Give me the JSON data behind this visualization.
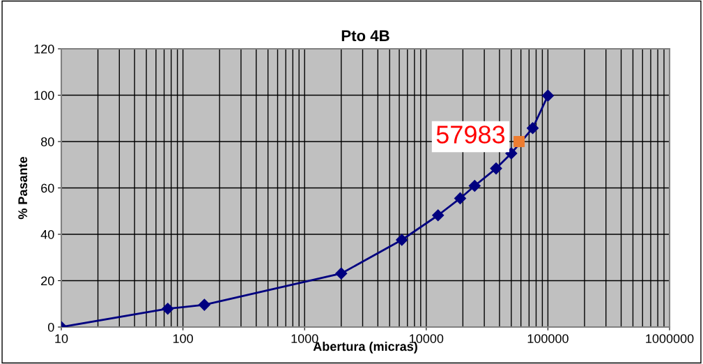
{
  "chart_data": {
    "type": "line",
    "title": "Pto 4B",
    "xlabel": "Abertura (micras)",
    "ylabel": "% Pasante",
    "log": "x",
    "grid": true,
    "xlim": [
      10,
      1000000
    ],
    "xticks": [
      10,
      100,
      1000,
      10000,
      100000,
      1000000
    ],
    "ylim": [
      0,
      120
    ],
    "yticks": [
      0,
      20,
      40,
      60,
      80,
      100,
      120
    ],
    "series": [
      {
        "marker": "diamond",
        "color": "#000080",
        "x": [
          10,
          75,
          150,
          2000,
          6300,
          12500,
          19000,
          25000,
          37500,
          50000,
          75000,
          100000
        ],
        "values": [
          0,
          7.9,
          9.6,
          23.1,
          37.6,
          48.2,
          55.5,
          60.9,
          68.4,
          74.9,
          85.8,
          99.8
        ]
      },
      {
        "type": "scatter",
        "marker": "square",
        "color": "#ed7d31",
        "x": [
          57983
        ],
        "values": [
          80
        ]
      }
    ],
    "annotations": [
      {
        "text": "57983",
        "x": 57983,
        "y": 80
      }
    ]
  }
}
